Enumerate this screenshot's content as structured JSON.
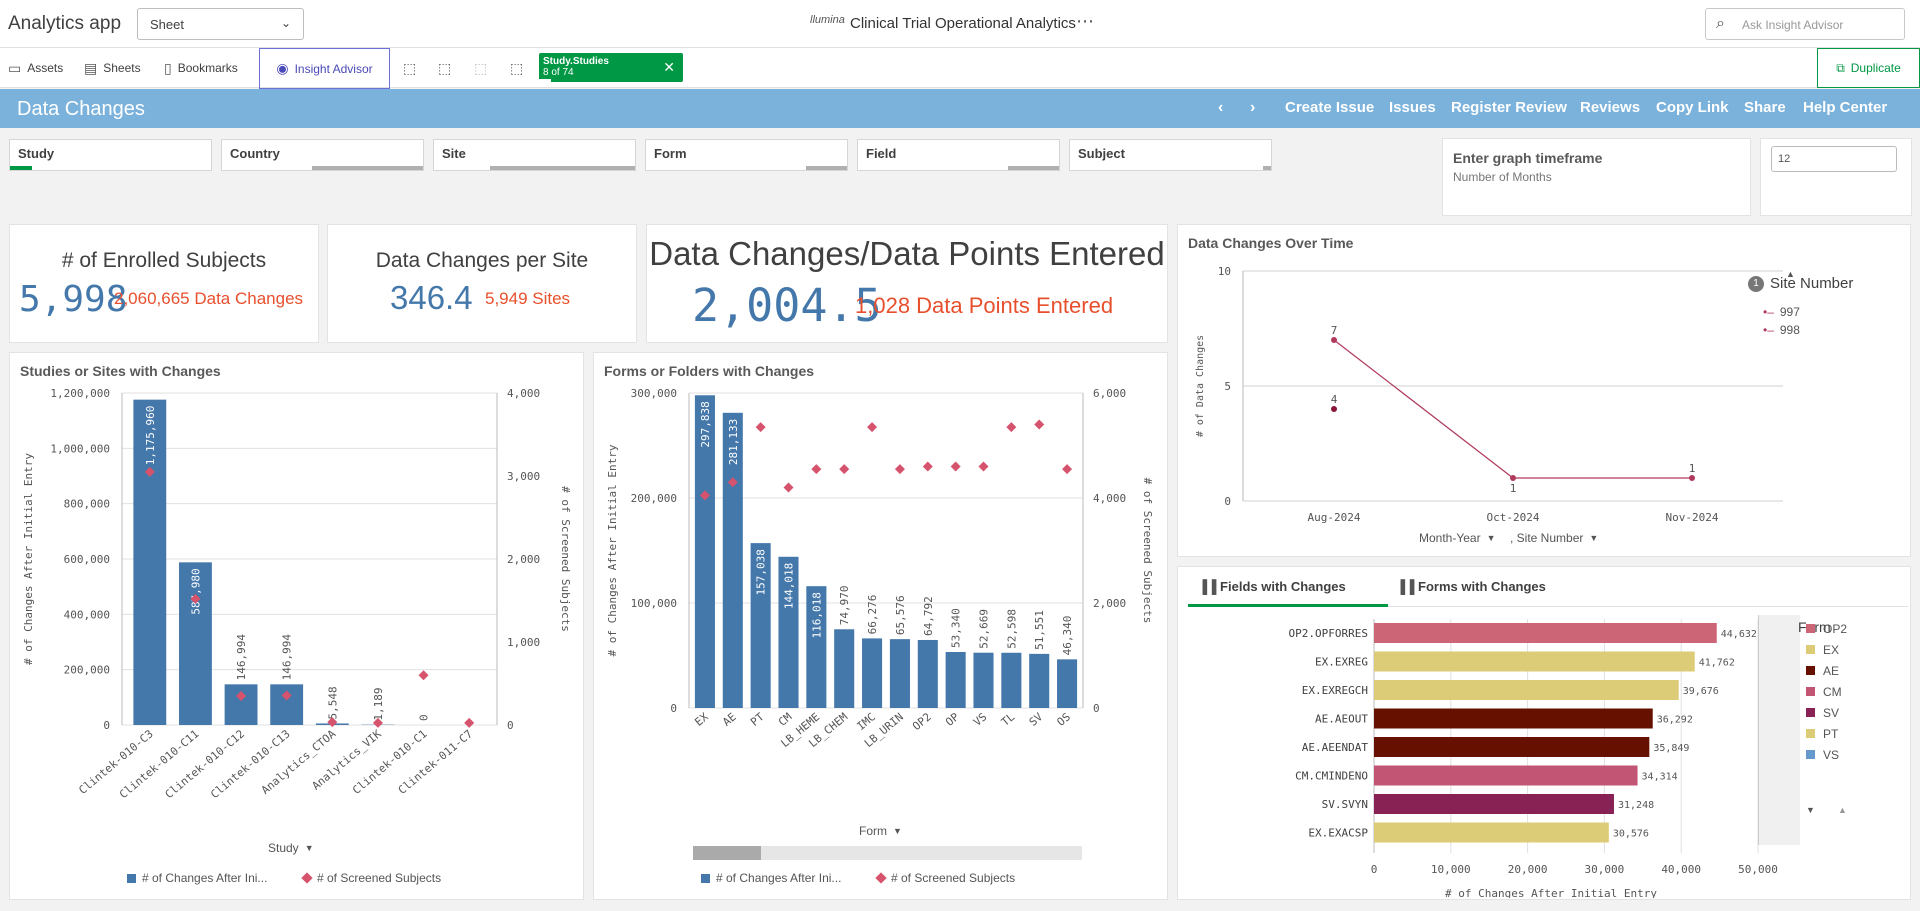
{
  "app": {
    "name": "Analytics app",
    "sheet_select": "Sheet",
    "logo": "llumina",
    "title": "Clinical Trial Operational Analytics",
    "search_placeholder": "Ask Insight Advisor"
  },
  "toolbar": {
    "assets": "Assets",
    "sheets": "Sheets",
    "bookmarks": "Bookmarks",
    "insight": "Insight Advisor",
    "selection_field": "Study.Studies",
    "selection_count": "8 of 74",
    "duplicate": "Duplicate"
  },
  "banner": {
    "title": "Data Changes",
    "links": [
      "Create Issue",
      "Issues",
      "Register Review",
      "Reviews",
      "Copy Link",
      "Share",
      "Help Center"
    ]
  },
  "filters": [
    {
      "label": "Study",
      "ind_color": "#009845",
      "ind_width": 18
    },
    {
      "label": "Country",
      "ind_color": "#b0b0b0",
      "ind_width": 90
    },
    {
      "label": "Site",
      "ind_color": "#b0b0b0",
      "ind_width": 160
    },
    {
      "label": "Form",
      "ind_color": "#b0b0b0",
      "ind_width": 45
    },
    {
      "label": "Field",
      "ind_color": "#b0b0b0",
      "ind_width": 55
    },
    {
      "label": "Subject",
      "ind_color": "#b0b0b0",
      "ind_width": 10
    }
  ],
  "timeframe": {
    "title": "Enter graph timeframe",
    "subtitle": "Number of Months",
    "value": "12"
  },
  "kpis": [
    {
      "label": "# of Enrolled Subjects",
      "value": "5,998",
      "secondary": "2,060,665 Data Changes"
    },
    {
      "label": "Data Changes per Site",
      "value": "346.4",
      "secondary": "5,949 Sites"
    },
    {
      "label": "Data Changes/Data Points Entered",
      "value": "2,004.5",
      "secondary": "1,028 Data Points Entered"
    }
  ],
  "colors": {
    "bar": "#4477aa",
    "diamond": "#d6536d",
    "line": "#b03a5b",
    "op2": "#cc6677",
    "ex": "#ddcc77",
    "ae": "#661100",
    "cm": "#c25474",
    "sv": "#882255",
    "pt": "#ddcc77",
    "vs": "#6699cc",
    "accent": "#009845"
  },
  "studies_chart": {
    "title": "Studies or Sites with Changes",
    "xlabel": "Study",
    "ylabel_left": "# of Changes After Initial Entry",
    "ylabel_right": "# of Screened Subjects",
    "legend": [
      "# of Changes After Ini...",
      "# of Screened Subjects"
    ]
  },
  "forms_chart": {
    "title": "Forms or Folders with Changes",
    "xlabel": "Form",
    "ylabel_left": "# of Changes After Initial Entry",
    "ylabel_right": "# of Screened Subjects",
    "legend": [
      "# of Changes After Ini...",
      "# of Screened Subjects"
    ]
  },
  "time_chart": {
    "title": "Data Changes Over Time",
    "ylabel": "# of Data Changes",
    "dim1": "Month-Year",
    "dim2": ", Site Number",
    "legend_title": "Site Number",
    "legend_badge": "1"
  },
  "fields_chart": {
    "tab_active": "Fields with Changes",
    "tab_other": "Forms with Changes",
    "xlabel": "# of Changes After Initial Entry",
    "legend_title": "Form"
  },
  "chart_data": [
    {
      "type": "bar",
      "title": "Studies or Sites with Changes",
      "categories": [
        "Clintek-010-C3",
        "Clintek-010-C11",
        "Clintek-010-C12",
        "Clintek-010-C13",
        "Analytics_CTOA",
        "Analytics_VIK",
        "Clintek-010-C1",
        "Clintek-011-C7"
      ],
      "series": [
        {
          "name": "# of Changes After Ini...",
          "values": [
            1175960,
            587980,
            146994,
            146994,
            5548,
            1189,
            0,
            0
          ],
          "labels": [
            "1,175,960",
            "587,980",
            "146,994",
            "146,994",
            "5,548",
            "1,189",
            "0",
            ""
          ],
          "axis": "left"
        },
        {
          "name": "# of Screened Subjects",
          "values": [
            3050,
            1520,
            350,
            355,
            35,
            25,
            600,
            25
          ],
          "axis": "right"
        }
      ],
      "ylim": [
        0,
        1200000
      ],
      "y2lim": [
        0,
        4000
      ],
      "yticks": [
        "0",
        "200,000",
        "400,000",
        "600,000",
        "800,000",
        "1,000,000",
        "1,200,000"
      ],
      "y2ticks": [
        "0",
        "1,000",
        "2,000",
        "3,000",
        "4,000"
      ]
    },
    {
      "type": "bar",
      "title": "Forms or Folders with Changes",
      "categories": [
        "EX",
        "AE",
        "PT",
        "CM",
        "LB_HEME",
        "LB_CHEM",
        "IMC",
        "LB_URIN",
        "OP2",
        "OP",
        "VS",
        "TL",
        "SV",
        "OS"
      ],
      "series": [
        {
          "name": "# of Changes After Ini...",
          "values": [
            297838,
            281133,
            157038,
            144018,
            116018,
            74970,
            66276,
            65576,
            64792,
            53340,
            52669,
            52598,
            51551,
            46340
          ],
          "labels": [
            "297,838",
            "281,133",
            "157,038",
            "144,018",
            "116,018",
            "74,970",
            "66,276",
            "65,576",
            "64,792",
            "53,340",
            "52,669",
            "52,598",
            "51,551",
            "46,340"
          ],
          "axis": "left"
        },
        {
          "name": "# of Screened Subjects",
          "values": [
            4050,
            4300,
            5350,
            4200,
            4550,
            4550,
            5350,
            4550,
            4600,
            4600,
            4600,
            5350,
            5400,
            4550
          ],
          "axis": "right"
        }
      ],
      "ylim": [
        0,
        300000
      ],
      "y2lim": [
        0,
        6000
      ],
      "yticks": [
        "0",
        "100,000",
        "200,000",
        "300,000"
      ],
      "y2ticks": [
        "0",
        "2,000",
        "4,000",
        "6,000"
      ]
    },
    {
      "type": "line",
      "title": "Data Changes Over Time",
      "x": [
        "Aug-2024",
        "Oct-2024",
        "Nov-2024"
      ],
      "series": [
        {
          "name": "997",
          "values": [
            7,
            1,
            1
          ]
        },
        {
          "name": "998",
          "values": [
            4,
            null,
            null
          ]
        }
      ],
      "ylim": [
        0,
        10
      ],
      "yticks": [
        "0",
        "5",
        "10"
      ]
    },
    {
      "type": "bar",
      "orientation": "horizontal",
      "categories": [
        "OP2.OPFORRES",
        "EX.EXREG",
        "EX.EXREGCH",
        "AE.AEOUT",
        "AE.AEENDAT",
        "CM.CMINDENO",
        "SV.SVYN",
        "EX.EXACSP"
      ],
      "groups": [
        "OP2",
        "EX",
        "EX",
        "AE",
        "AE",
        "CM",
        "SV",
        "EX"
      ],
      "values": [
        44632,
        41762,
        39676,
        36292,
        35849,
        34314,
        31248,
        30576
      ],
      "labels": [
        "44,632",
        "41,762",
        "39,676",
        "36,292",
        "35,849",
        "34,314",
        "31,248",
        "30,576"
      ],
      "xlim": [
        0,
        50000
      ],
      "xticks": [
        "0",
        "10,000",
        "20,000",
        "30,000",
        "40,000",
        "50,000"
      ],
      "legend": [
        "OP2",
        "EX",
        "AE",
        "CM",
        "SV",
        "PT",
        "VS"
      ]
    }
  ]
}
